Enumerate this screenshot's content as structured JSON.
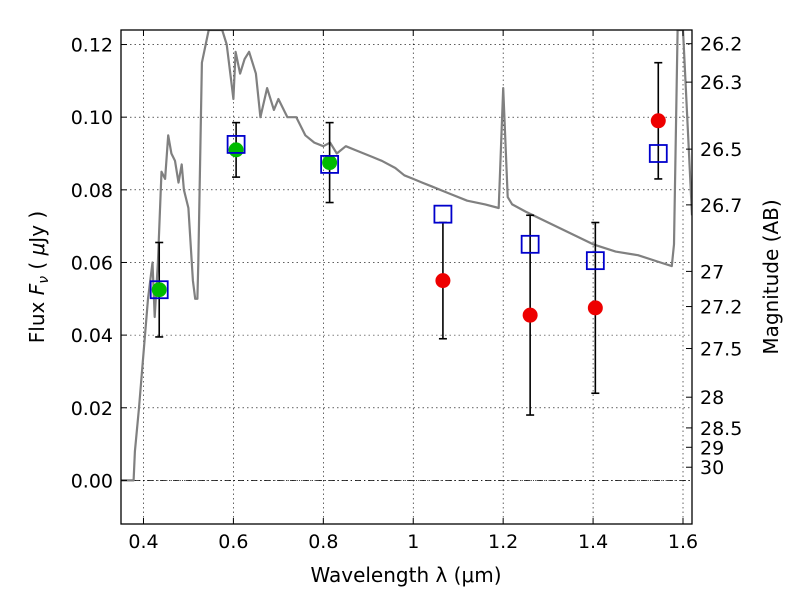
{
  "chart_data": {
    "type": "scatter",
    "xlabel": "Wavelength  λ (μm)",
    "ylabel": "Flux  F_ν  ( μJy )",
    "y2label": "Magnitude (AB)",
    "xlim": [
      0.35,
      1.62
    ],
    "ylim": [
      -0.012,
      0.124
    ],
    "x_ticks": [
      0.4,
      0.6,
      0.8,
      1.0,
      1.2,
      1.4,
      1.6
    ],
    "x_tick_labels": [
      "0.4",
      "0.6",
      "0.8",
      "1",
      "1.2",
      "1.4",
      "1.6"
    ],
    "y_ticks": [
      0.0,
      0.02,
      0.04,
      0.06,
      0.08,
      0.1,
      0.12
    ],
    "y_tick_labels": [
      "0.00",
      "0.02",
      "0.04",
      "0.06",
      "0.08",
      "0.10",
      "0.12"
    ],
    "mag_ticks": [
      "26.2",
      "26.3",
      "26.5",
      "26.7",
      "27",
      "27.2",
      "27.5",
      "28",
      "28.5",
      "29",
      "30"
    ],
    "grid": true,
    "colors": {
      "sed_line": "#808080",
      "model_squares": "#0000cc",
      "detected": "#00bb00",
      "undetected": "#ee0000",
      "errorbar": "#000000"
    },
    "series": [
      {
        "marker": "circle",
        "x": [
          0.435,
          0.606,
          0.814,
          1.066,
          1.26,
          1.405,
          1.545
        ],
        "y": [
          0.0525,
          0.091,
          0.0875,
          0.055,
          0.0455,
          0.0475,
          0.099
        ],
        "yerr": [
          0.013,
          0.0075,
          0.011,
          0.016,
          0.0275,
          0.0235,
          0.016
        ],
        "color": [
          "#00bb00",
          "#00bb00",
          "#00bb00",
          "#ee0000",
          "#ee0000",
          "#ee0000",
          "#ee0000"
        ]
      },
      {
        "marker": "square",
        "x": [
          0.435,
          0.606,
          0.814,
          1.066,
          1.26,
          1.405,
          1.545
        ],
        "y": [
          0.0525,
          0.0925,
          0.087,
          0.0733,
          0.065,
          0.0605,
          0.09
        ]
      },
      {
        "type": "line",
        "x": [
          0.35,
          0.378,
          0.381,
          0.39,
          0.4,
          0.41,
          0.42,
          0.425,
          0.432,
          0.44,
          0.448,
          0.455,
          0.462,
          0.47,
          0.478,
          0.485,
          0.49,
          0.5,
          0.51,
          0.515,
          0.52,
          0.522,
          0.53,
          0.545,
          0.56,
          0.575,
          0.585,
          0.595,
          0.6,
          0.605,
          0.615,
          0.625,
          0.635,
          0.65,
          0.66,
          0.675,
          0.69,
          0.7,
          0.72,
          0.74,
          0.76,
          0.78,
          0.8,
          0.815,
          0.83,
          0.85,
          0.87,
          0.89,
          0.91,
          0.93,
          0.96,
          0.98,
          1.0,
          1.02,
          1.04,
          1.08,
          1.12,
          1.16,
          1.19,
          1.2,
          1.21,
          1.22,
          1.25,
          1.3,
          1.35,
          1.4,
          1.45,
          1.5,
          1.55,
          1.575,
          1.58,
          1.588,
          1.6,
          1.62
        ],
        "y": [
          0.0,
          0.0,
          0.008,
          0.02,
          0.035,
          0.05,
          0.06,
          0.045,
          0.06,
          0.085,
          0.083,
          0.095,
          0.09,
          0.088,
          0.082,
          0.087,
          0.08,
          0.075,
          0.055,
          0.05,
          0.05,
          0.06,
          0.115,
          0.124,
          0.124,
          0.124,
          0.12,
          0.11,
          0.105,
          0.118,
          0.112,
          0.116,
          0.118,
          0.112,
          0.1,
          0.108,
          0.102,
          0.105,
          0.1,
          0.1,
          0.095,
          0.093,
          0.092,
          0.093,
          0.09,
          0.092,
          0.091,
          0.09,
          0.089,
          0.088,
          0.086,
          0.084,
          0.083,
          0.082,
          0.081,
          0.079,
          0.077,
          0.076,
          0.075,
          0.108,
          0.078,
          0.076,
          0.074,
          0.071,
          0.068,
          0.065,
          0.063,
          0.062,
          0.06,
          0.059,
          0.065,
          0.124,
          0.124,
          0.073
        ]
      }
    ]
  }
}
